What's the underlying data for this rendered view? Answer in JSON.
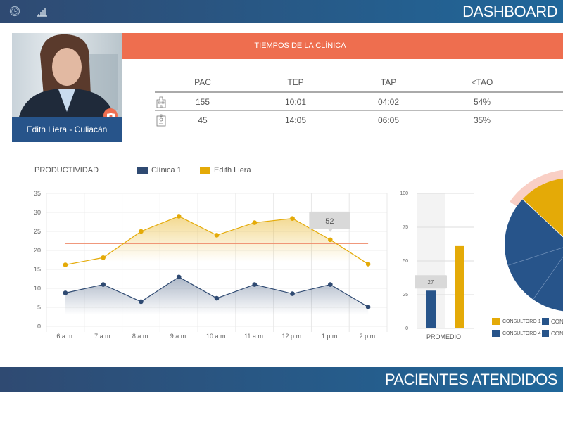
{
  "header": {
    "title": "DASHBOARD",
    "icons": [
      "clock-icon",
      "bar-chart-icon"
    ]
  },
  "profile": {
    "name": "Edith Liera - Culiacán",
    "camera_icon": "camera-icon"
  },
  "clinic_times": {
    "title": "TIEMPOS DE LA CLÍNICA",
    "columns": [
      "PAC",
      "TEP",
      "TAP",
      "<TAO"
    ],
    "rows": [
      {
        "icon": "hospital-icon",
        "values": [
          "155",
          "10:01",
          "04:02",
          "54%"
        ]
      },
      {
        "icon": "id-badge-icon",
        "values": [
          "45",
          "14:05",
          "06:05",
          "35%"
        ]
      }
    ]
  },
  "productivity": {
    "title": "PRODUCTIVIDAD",
    "legend": [
      "Clínica 1",
      "Edith Liera"
    ]
  },
  "average": {
    "label": "PROMEDIO",
    "tooltip": "27"
  },
  "pie_legend": [
    "CONSULTORO 1",
    "CON",
    "CONSULTORO 4",
    "CON"
  ],
  "section2": {
    "title": "PACIENTES ATENDIDOS"
  },
  "colors": {
    "navy": "#2f4a72",
    "blue": "#27548a",
    "gold": "#e4aa07",
    "coral": "#ee6e4f",
    "pink": "#f9cfc5"
  },
  "chart_data": [
    {
      "type": "line",
      "categories": [
        "6 a.m.",
        "7 a.m.",
        "8 a.m.",
        "9 a.m.",
        "10 a.m.",
        "11 a.m.",
        "12 p.m.",
        "1 p.m.",
        "2 p.m."
      ],
      "series": [
        {
          "name": "Clínica 1",
          "color": "#2f4a72",
          "values": [
            8.8,
            11,
            6.5,
            13,
            7.4,
            11,
            8.6,
            11,
            5.1
          ]
        },
        {
          "name": "Edith Liera",
          "color": "#e4aa07",
          "values": [
            16.2,
            18.1,
            25,
            29,
            24,
            27.3,
            28.4,
            22.8,
            16.4
          ]
        }
      ],
      "reference_line": 21.8,
      "yticks": [
        0,
        5,
        10,
        15,
        20,
        25,
        30,
        35
      ],
      "ylim": [
        0,
        35
      ],
      "tooltip": {
        "category": "1 p.m.",
        "text": "52"
      },
      "grid": true,
      "legend": "top"
    },
    {
      "type": "bar",
      "categories": [
        "PROMEDIO"
      ],
      "series": [
        {
          "color": "#27548a",
          "values": [
            28
          ]
        },
        {
          "color": "#e4aa07",
          "values": [
            61
          ]
        }
      ],
      "yticks": [
        0,
        25,
        50,
        75,
        100
      ],
      "ylim": [
        0,
        100
      ],
      "grid": true
    },
    {
      "type": "pie",
      "note_visible": "partial",
      "slices": [
        {
          "label": "CONSULTORO 1",
          "color": "#e4aa07",
          "highlighted": true
        },
        {
          "label": "CONSULTORO 4",
          "color": "#27548a"
        },
        {
          "color": "#27548a"
        },
        {
          "color": "#27548a"
        }
      ]
    }
  ]
}
